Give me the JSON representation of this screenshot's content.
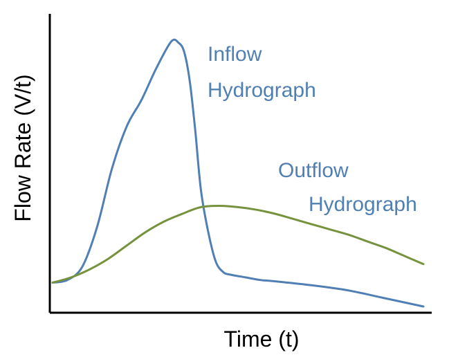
{
  "chart_data": {
    "type": "line",
    "title": "",
    "xlabel": "Time (t)",
    "ylabel": "Flow Rate (V/t)",
    "xlim": [
      0,
      100
    ],
    "ylim": [
      0,
      100
    ],
    "grid": false,
    "ticks": false,
    "series": [
      {
        "name": "Inflow Hydrograph",
        "label_lines": [
          "Inflow",
          "Hydrograph"
        ],
        "color": "#4f7fb3",
        "x": [
          0,
          4,
          8,
          12,
          16,
          20,
          24,
          28,
          32,
          34,
          35.5,
          37,
          38.5,
          40,
          42,
          44,
          46,
          48,
          52,
          56,
          60,
          70,
          80,
          90,
          100
        ],
        "y": [
          9,
          10,
          15,
          30,
          52,
          68,
          78,
          90,
          100,
          99.5,
          96,
          85,
          66,
          44,
          28,
          17,
          13,
          12,
          11,
          10,
          9.5,
          8,
          6,
          3,
          0
        ]
      },
      {
        "name": "Outflow Hydrograph",
        "label_lines": [
          "Outflow",
          "Hydrograph"
        ],
        "color": "#76923c",
        "x": [
          0,
          5,
          10,
          15,
          20,
          25,
          30,
          35,
          40,
          45,
          50,
          55,
          60,
          65,
          70,
          75,
          80,
          85,
          90,
          95,
          100
        ],
        "y": [
          9,
          11,
          14,
          18,
          23,
          28,
          32,
          35,
          37.5,
          38,
          37.5,
          36.5,
          35,
          33,
          31,
          29,
          27,
          24.5,
          22,
          19,
          16
        ]
      }
    ]
  }
}
